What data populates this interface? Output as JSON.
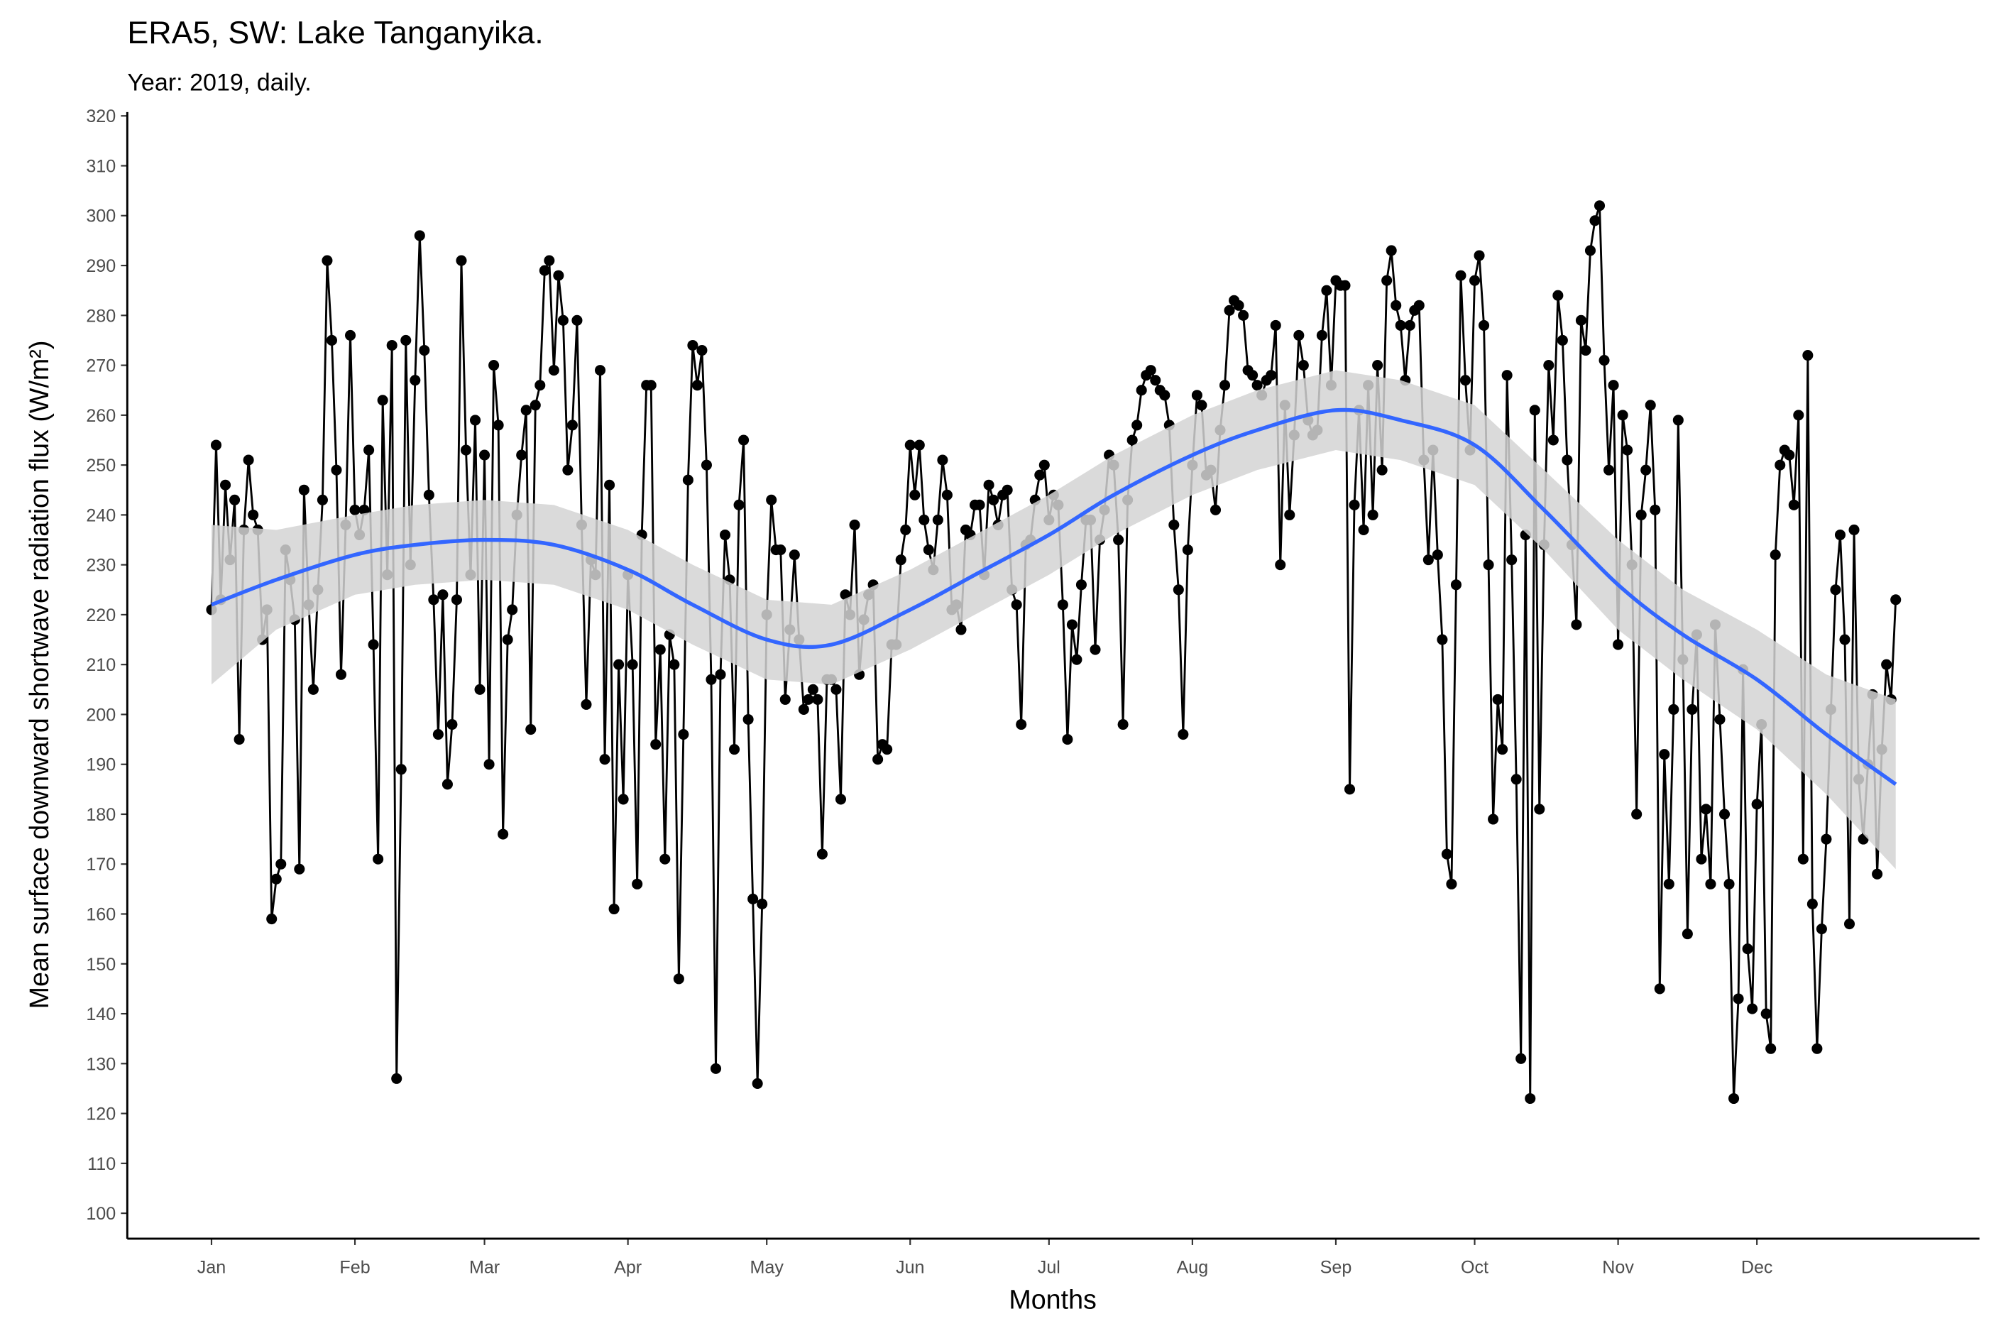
{
  "chart_data": {
    "type": "line",
    "title": "ERA5, SW: Lake Tanganyika.",
    "subtitle": "Year: 2019, daily.",
    "x_label": "Months",
    "y_label": "Mean surface downward shortwave radiation flux (W/m²)",
    "color": "#000000",
    "markers": true,
    "xlim": [
      -17.2,
      383.1
    ],
    "ylim": [
      94.9,
      320.77
    ],
    "xticks": [
      {
        "value": 1,
        "label": "Jan"
      },
      {
        "value": 32,
        "label": "Feb"
      },
      {
        "value": 60,
        "label": "Mar"
      },
      {
        "value": 91,
        "label": "Apr"
      },
      {
        "value": 121,
        "label": "May"
      },
      {
        "value": 152,
        "label": "Jun"
      },
      {
        "value": 182,
        "label": "Jul"
      },
      {
        "value": 213,
        "label": "Aug"
      },
      {
        "value": 244,
        "label": "Sep"
      },
      {
        "value": 274,
        "label": "Oct"
      },
      {
        "value": 305,
        "label": "Nov"
      },
      {
        "value": 335,
        "label": "Dec"
      }
    ],
    "yticks": [
      100,
      110,
      120,
      130,
      140,
      150,
      160,
      170,
      180,
      190,
      200,
      210,
      220,
      230,
      240,
      250,
      260,
      270,
      280,
      290,
      300,
      310,
      320
    ],
    "grid": false,
    "x": [
      1,
      2,
      3,
      4,
      5,
      6,
      7,
      8,
      9,
      10,
      11,
      12,
      13,
      14,
      15,
      16,
      17,
      18,
      19,
      20,
      21,
      22,
      23,
      24,
      25,
      26,
      27,
      28,
      29,
      30,
      31,
      32,
      33,
      34,
      35,
      36,
      37,
      38,
      39,
      40,
      41,
      42,
      43,
      44,
      45,
      46,
      47,
      48,
      49,
      50,
      51,
      52,
      53,
      54,
      55,
      56,
      57,
      58,
      59,
      60,
      61,
      62,
      63,
      64,
      65,
      66,
      67,
      68,
      69,
      70,
      71,
      72,
      73,
      74,
      75,
      76,
      77,
      78,
      79,
      80,
      81,
      82,
      83,
      84,
      85,
      86,
      87,
      88,
      89,
      90,
      91,
      92,
      93,
      94,
      95,
      96,
      97,
      98,
      99,
      100,
      101,
      102,
      103,
      104,
      105,
      106,
      107,
      108,
      109,
      110,
      111,
      112,
      113,
      114,
      115,
      116,
      117,
      118,
      119,
      120,
      121,
      122,
      123,
      124,
      125,
      126,
      127,
      128,
      129,
      130,
      131,
      132,
      133,
      134,
      135,
      136,
      137,
      138,
      139,
      140,
      141,
      142,
      143,
      144,
      145,
      146,
      147,
      148,
      149,
      150,
      151,
      152,
      153,
      154,
      155,
      156,
      157,
      158,
      159,
      160,
      161,
      162,
      163,
      164,
      165,
      166,
      167,
      168,
      169,
      170,
      171,
      172,
      173,
      174,
      175,
      176,
      177,
      178,
      179,
      180,
      181,
      182,
      183,
      184,
      185,
      186,
      187,
      188,
      189,
      190,
      191,
      192,
      193,
      194,
      195,
      196,
      197,
      198,
      199,
      200,
      201,
      202,
      203,
      204,
      205,
      206,
      207,
      208,
      209,
      210,
      211,
      212,
      213,
      214,
      215,
      216,
      217,
      218,
      219,
      220,
      221,
      222,
      223,
      224,
      225,
      226,
      227,
      228,
      229,
      230,
      231,
      232,
      233,
      234,
      235,
      236,
      237,
      238,
      239,
      240,
      241,
      242,
      243,
      244,
      245,
      246,
      247,
      248,
      249,
      250,
      251,
      252,
      253,
      254,
      255,
      256,
      257,
      258,
      259,
      260,
      261,
      262,
      263,
      264,
      265,
      266,
      267,
      268,
      269,
      270,
      271,
      272,
      273,
      274,
      275,
      276,
      277,
      278,
      279,
      280,
      281,
      282,
      283,
      284,
      285,
      286,
      287,
      288,
      289,
      290,
      291,
      292,
      293,
      294,
      295,
      296,
      297,
      298,
      299,
      300,
      301,
      302,
      303,
      304,
      305,
      306,
      307,
      308,
      309,
      310,
      311,
      312,
      313,
      314,
      315,
      316,
      317,
      318,
      319,
      320,
      321,
      322,
      323,
      324,
      325,
      326,
      327,
      328,
      329,
      330,
      331,
      332,
      333,
      334,
      335,
      336,
      337,
      338,
      339,
      340,
      341,
      342,
      343,
      344,
      345,
      346,
      347,
      348,
      349,
      350,
      351,
      352,
      353,
      354,
      355,
      356,
      357,
      358,
      359,
      360,
      361,
      362,
      363,
      364,
      365
    ],
    "values": [
      221,
      254,
      223,
      246,
      231,
      243,
      195,
      237,
      251,
      240,
      237,
      215,
      221,
      159,
      167,
      170,
      233,
      227,
      219,
      169,
      245,
      222,
      205,
      225,
      243,
      291,
      275,
      249,
      208,
      238,
      276,
      241,
      236,
      241,
      253,
      214,
      171,
      263,
      228,
      274,
      127,
      189,
      275,
      230,
      267,
      296,
      273,
      244,
      223,
      196,
      224,
      186,
      198,
      223,
      291,
      253,
      228,
      259,
      205,
      252,
      190,
      270,
      258,
      176,
      215,
      221,
      240,
      252,
      261,
      197,
      262,
      266,
      289,
      291,
      269,
      288,
      279,
      249,
      258,
      279,
      238,
      202,
      231,
      228,
      269,
      191,
      246,
      161,
      210,
      183,
      228,
      210,
      166,
      236,
      266,
      266,
      194,
      213,
      171,
      216,
      210,
      147,
      196,
      247,
      274,
      266,
      273,
      250,
      207,
      129,
      208,
      236,
      227,
      193,
      242,
      255,
      199,
      163,
      126,
      162,
      220,
      243,
      233,
      233,
      203,
      217,
      232,
      215,
      201,
      203,
      205,
      203,
      172,
      207,
      207,
      205,
      183,
      224,
      220,
      238,
      208,
      219,
      224,
      226,
      191,
      194,
      193,
      214,
      214,
      231,
      237,
      254,
      244,
      254,
      239,
      233,
      229,
      239,
      251,
      244,
      221,
      222,
      217,
      237,
      236,
      242,
      242,
      228,
      246,
      243,
      238,
      244,
      245,
      225,
      222,
      198,
      234,
      235,
      243,
      248,
      250,
      239,
      244,
      242,
      222,
      195,
      218,
      211,
      226,
      239,
      239,
      213,
      235,
      241,
      252,
      250,
      235,
      198,
      243,
      255,
      258,
      265,
      268,
      269,
      267,
      265,
      264,
      258,
      238,
      225,
      196,
      233,
      250,
      264,
      262,
      248,
      249,
      241,
      257,
      266,
      281,
      283,
      282,
      280,
      269,
      268,
      266,
      264,
      267,
      268,
      278,
      230,
      262,
      240,
      256,
      276,
      270,
      259,
      256,
      257,
      276,
      285,
      266,
      287,
      286,
      286,
      185,
      242,
      261,
      237,
      266,
      240,
      270,
      249,
      287,
      293,
      282,
      278,
      267,
      278,
      281,
      282,
      251,
      231,
      253,
      232,
      215,
      172,
      166,
      226,
      288,
      267,
      253,
      287,
      292,
      278,
      230,
      179,
      203,
      193,
      268,
      231,
      187,
      131,
      236,
      123,
      261,
      181,
      234,
      270,
      255,
      284,
      275,
      251,
      234,
      218,
      279,
      273,
      293,
      299,
      302,
      271,
      249,
      266,
      214,
      260,
      253,
      230,
      180,
      240,
      249,
      262,
      241,
      145,
      192,
      166,
      201,
      259,
      211,
      156,
      201,
      216,
      171,
      181,
      166,
      218,
      199,
      180,
      166,
      123,
      143,
      209,
      153,
      141,
      182,
      198,
      140,
      133,
      232,
      250,
      253,
      252,
      242,
      260,
      171,
      272,
      162,
      133,
      157,
      175,
      201,
      225,
      236,
      215,
      158,
      237,
      187,
      175,
      190,
      204,
      168,
      193,
      210,
      203,
      223
    ],
    "smooth": {
      "color": "#3366ff",
      "band_color": "#d3d3d3",
      "x": [
        1,
        15,
        32,
        45,
        60,
        75,
        91,
        105,
        121,
        135,
        152,
        166,
        182,
        196,
        213,
        227,
        244,
        258,
        274,
        289,
        305,
        319,
        335,
        350,
        365
      ],
      "values": [
        222,
        227,
        232,
        234,
        235,
        234,
        229,
        222,
        215,
        214,
        221,
        228,
        236,
        244,
        252,
        257,
        261,
        259,
        254,
        241,
        226,
        216,
        207,
        196,
        186
      ],
      "lower": [
        206,
        217,
        224,
        226,
        227,
        226,
        221,
        214,
        207,
        206,
        213,
        220,
        228,
        236,
        244,
        249,
        253,
        251,
        246,
        233,
        217,
        207,
        197,
        184,
        169
      ],
      "upper": [
        238,
        237,
        240,
        242,
        243,
        242,
        237,
        230,
        223,
        222,
        229,
        236,
        244,
        252,
        260,
        265,
        269,
        267,
        262,
        249,
        235,
        225,
        217,
        208,
        203
      ]
    }
  }
}
